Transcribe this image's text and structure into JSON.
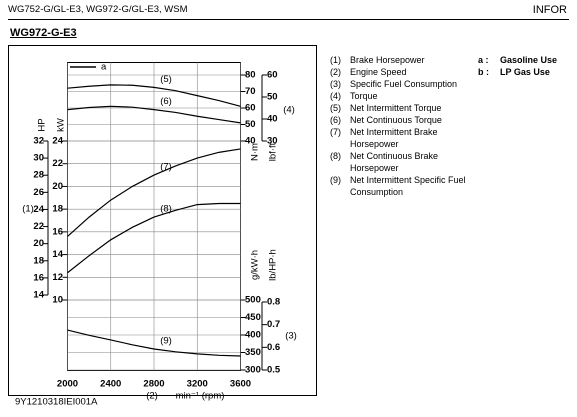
{
  "header": {
    "left": "WG752-G/GL-E3, WG972-G/GL-E3, WSM",
    "right": "INFOR"
  },
  "section_title": "WG972-G-E3",
  "notes": [
    {
      "num": "(1)",
      "text": "Brake Horsepower"
    },
    {
      "num": "(2)",
      "text": "Engine Speed"
    },
    {
      "num": "(3)",
      "text": "Specific Fuel Consumption"
    },
    {
      "num": "(4)",
      "text": "Torque"
    },
    {
      "num": "(5)",
      "text": "Net Intermittent Torque"
    },
    {
      "num": "(6)",
      "text": "Net Continuous Torque"
    },
    {
      "num": "(7)",
      "text": "Net Intermittent Brake Horsepower"
    },
    {
      "num": "(8)",
      "text": "Net Continuous Brake Horsepower"
    },
    {
      "num": "(9)",
      "text": "Net Intermittent Specific Fuel Consumption"
    }
  ],
  "key": [
    {
      "letter": "a :",
      "text": "Gasoline Use"
    },
    {
      "letter": "b :",
      "text": "LP Gas Use"
    }
  ],
  "chart_data": {
    "type": "line",
    "legend_sample": "a",
    "x": [
      2000,
      2200,
      2400,
      2600,
      2800,
      3000,
      3200,
      3400,
      3600
    ],
    "xlim": [
      2000,
      3600
    ],
    "xticks": [
      2000,
      2400,
      2800,
      3200,
      3600
    ],
    "x_label": "min⁻¹ (rpm)",
    "x_note": "(2)",
    "ylim": [
      10,
      24
    ],
    "yticks": [
      10,
      12,
      14,
      16,
      18,
      20,
      22,
      24
    ],
    "y_label": "kW",
    "hp_axis": {
      "label": "HP",
      "lim": [
        14,
        32
      ],
      "ticks": [
        14,
        16,
        18,
        20,
        22,
        24,
        26,
        28,
        30,
        32
      ]
    },
    "power_note": "(1)",
    "y2lim": [
      40,
      80
    ],
    "y2ticks": [
      40,
      50,
      60,
      70,
      80
    ],
    "y2_label": "N·m",
    "lbf_axis": {
      "label": "lbf·ft",
      "lim": [
        30,
        60
      ],
      "ticks": [
        30,
        40,
        50,
        60
      ]
    },
    "torque_note": "(4)",
    "y3lim": [
      300,
      500
    ],
    "y3ticks": [
      300,
      350,
      400,
      450,
      500
    ],
    "y3_label": "g/kW·h",
    "lb_axis": {
      "label": "lb/HP·h",
      "lim": [
        0.5,
        0.8
      ],
      "ticks": [
        0.5,
        0.6,
        0.7,
        0.8
      ]
    },
    "fuel_note": "(3)",
    "grid": true,
    "series": [
      {
        "name": "(5)",
        "color": "#000000",
        "axis": "y2",
        "values": [
          72,
          73.2,
          74,
          73.8,
          72.5,
          70.5,
          67.5,
          64.5,
          61
        ]
      },
      {
        "name": "(6)",
        "color": "#000000",
        "axis": "y2",
        "values": [
          59,
          60.3,
          61,
          60.5,
          59,
          57.3,
          55,
          53,
          51
        ]
      },
      {
        "name": "(7)",
        "color": "#000000",
        "axis": "y",
        "values": [
          15.6,
          17.3,
          18.8,
          20,
          21,
          21.8,
          22.5,
          23,
          23.3
        ]
      },
      {
        "name": "(8)",
        "color": "#000000",
        "axis": "y",
        "values": [
          12.4,
          13.9,
          15.3,
          16.4,
          17.3,
          17.9,
          18.4,
          18.5,
          18.5
        ]
      },
      {
        "name": "(9)",
        "color": "#000000",
        "axis": "y3",
        "values": [
          414,
          399,
          386,
          372,
          360,
          352,
          346,
          342,
          340
        ]
      }
    ],
    "code": "9Y1210318IEI001A"
  }
}
